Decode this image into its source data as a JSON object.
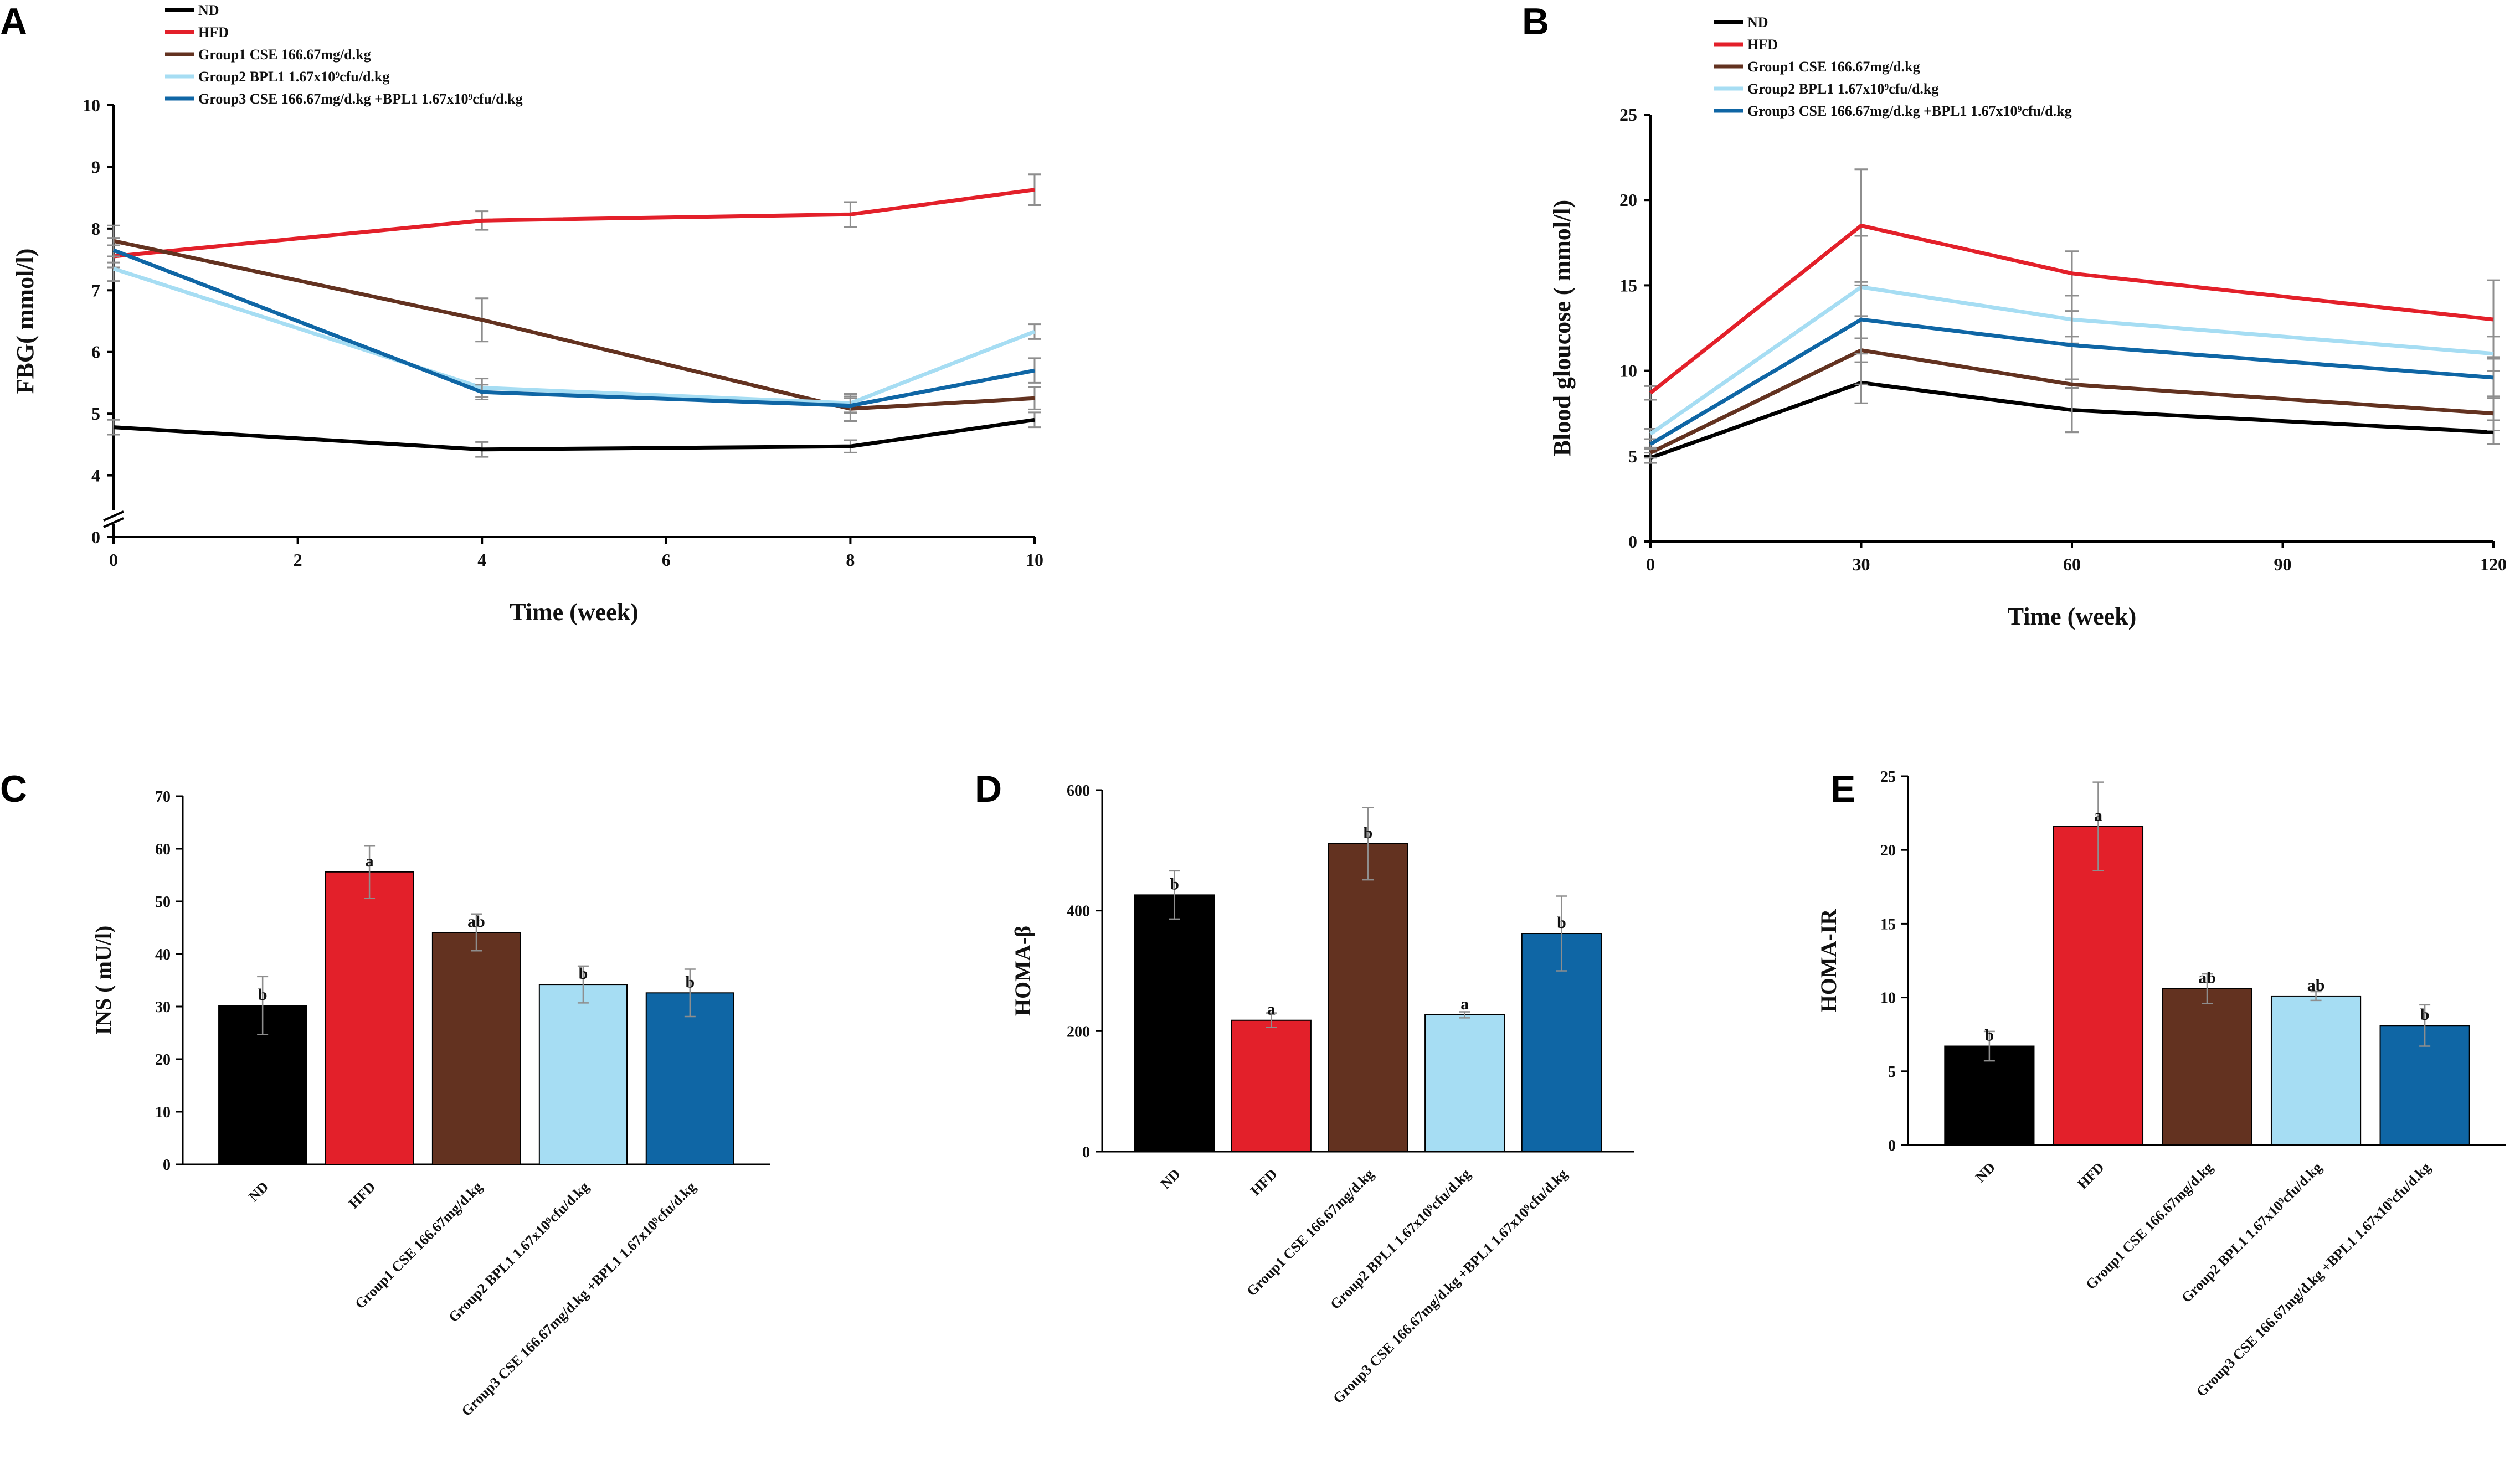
{
  "colors": {
    "ND": "#000000",
    "HFD": "#e3202a",
    "Group1": "#633220",
    "Group2": "#a6ddf3",
    "Group3": "#0f66a5",
    "error": "#8e8e8e"
  },
  "chart_data": [
    {
      "id": "A",
      "type": "line",
      "panel": "A",
      "xlabel": "Time (week)",
      "ylabel": "FBG( mmol/l)",
      "xlim": [
        0,
        10
      ],
      "ylim": [
        3,
        10
      ],
      "axis_break": true,
      "x_ticks": [
        "0",
        "2",
        "4",
        "6",
        "8",
        "10"
      ],
      "y_ticks": [
        "0",
        "4",
        "5",
        "6",
        "7",
        "8",
        "9",
        "10"
      ],
      "x": [
        0,
        4,
        8,
        10
      ],
      "legend": "top-left",
      "series": [
        {
          "key": "ND",
          "name": "ND",
          "values": [
            4.78,
            4.42,
            4.47,
            4.9
          ],
          "errors": [
            0.12,
            0.12,
            0.1,
            0.12
          ]
        },
        {
          "key": "HFD",
          "name": "HFD",
          "values": [
            7.55,
            8.13,
            8.23,
            8.63
          ],
          "errors": [
            0.18,
            0.15,
            0.2,
            0.25
          ]
        },
        {
          "key": "Group1",
          "name": "Group1 CSE 166.67mg/d.kg",
          "values": [
            7.8,
            6.52,
            5.08,
            5.25
          ],
          "errors": [
            0.25,
            0.35,
            0.2,
            0.18
          ]
        },
        {
          "key": "Group2",
          "name": "Group2 BPL1 1.67x10⁹cfu/d.kg",
          "values": [
            7.35,
            5.42,
            5.17,
            6.33
          ],
          "errors": [
            0.2,
            0.15,
            0.15,
            0.12
          ]
        },
        {
          "key": "Group3",
          "name": "Group3 CSE 166.67mg/d.kg +BPL1 1.67x10⁹cfu/d.kg",
          "values": [
            7.65,
            5.35,
            5.13,
            5.7
          ],
          "errors": [
            0.2,
            0.12,
            0.12,
            0.2
          ]
        }
      ]
    },
    {
      "id": "B",
      "type": "line",
      "panel": "B",
      "xlabel": "Time (week)",
      "ylabel": "Blood gloucose ( mmol/l)",
      "xlim": [
        0,
        120
      ],
      "ylim": [
        0,
        25
      ],
      "x_ticks": [
        "0",
        "30",
        "60",
        "90",
        "120"
      ],
      "y_ticks": [
        "0",
        "5",
        "10",
        "15",
        "20",
        "25"
      ],
      "x": [
        0,
        30,
        60,
        120
      ],
      "legend": "top-left",
      "series": [
        {
          "key": "ND",
          "name": "ND",
          "values": [
            4.9,
            9.3,
            7.7,
            6.4
          ],
          "errors": [
            0.3,
            1.2,
            1.3,
            0.7
          ]
        },
        {
          "key": "HFD",
          "name": "HFD",
          "values": [
            8.7,
            18.5,
            15.7,
            13.0
          ],
          "errors": [
            0.4,
            3.3,
            1.3,
            2.3
          ]
        },
        {
          "key": "Group1",
          "name": "Group1 CSE 166.67mg/d.kg",
          "values": [
            5.2,
            11.2,
            9.2,
            7.5
          ],
          "errors": [
            0.3,
            2.0,
            2.8,
            1.0
          ]
        },
        {
          "key": "Group2",
          "name": "Group2 BPL1 1.67x10⁹cfu/d.kg",
          "values": [
            6.3,
            14.9,
            13.0,
            11.0
          ],
          "errors": [
            0.3,
            3.0,
            1.4,
            1.0
          ]
        },
        {
          "key": "Group3",
          "name": "Group3 CSE 166.67mg/d.kg +BPL1 1.67x10⁹cfu/d.kg",
          "values": [
            5.7,
            13.0,
            11.5,
            9.6
          ],
          "errors": [
            0.3,
            2.0,
            2.0,
            1.2
          ]
        }
      ]
    },
    {
      "id": "C",
      "type": "bar",
      "panel": "C",
      "ylabel": "INS ( mU/l)",
      "ylim": [
        0,
        70
      ],
      "y_ticks": [
        "0",
        "10",
        "20",
        "30",
        "40",
        "50",
        "60",
        "70"
      ],
      "categories": [
        "ND",
        "HFD",
        "Group1 CSE 166.67mg/d.kg",
        "Group2 BPL1 1.67x10⁹cfu/d.kg",
        "Group3 CSE 166.67mg/d.kg +BPL1 1.67x10⁹cfu/d.kg"
      ],
      "keys": [
        "ND",
        "HFD",
        "Group1",
        "Group2",
        "Group3"
      ],
      "values": [
        30.2,
        55.6,
        44.1,
        34.2,
        32.6
      ],
      "errors": [
        5.5,
        5.0,
        3.5,
        3.5,
        4.5
      ],
      "letters": [
        "b",
        "a",
        "ab",
        "b",
        "b"
      ]
    },
    {
      "id": "D",
      "type": "bar",
      "panel": "D",
      "ylabel": "HOMA-β",
      "ylim": [
        0,
        600
      ],
      "y_ticks": [
        "0",
        "200",
        "400",
        "600"
      ],
      "categories": [
        "ND",
        "HFD",
        "Group1 CSE 166.67mg/d.kg",
        "Group2 BPL1 1.67x10⁹cfu/d.kg",
        "Group3 CSE 166.67mg/d.kg +BPL1 1.67x10⁹cfu/d.kg"
      ],
      "keys": [
        "ND",
        "HFD",
        "Group1",
        "Group2",
        "Group3"
      ],
      "values": [
        426,
        218,
        511,
        227,
        362
      ],
      "errors": [
        40,
        12,
        60,
        5,
        62
      ],
      "letters": [
        "b",
        "a",
        "b",
        "a",
        "b"
      ]
    },
    {
      "id": "E",
      "type": "bar",
      "panel": "E",
      "ylabel": "HOMA-IR",
      "ylim": [
        0,
        25
      ],
      "y_ticks": [
        "0",
        "5",
        "10",
        "15",
        "20",
        "25"
      ],
      "categories": [
        "ND",
        "HFD",
        "Group1 CSE 166.67mg/d.kg",
        "Group2 BPL1 1.67x10⁹cfu/d.kg",
        "Group3 CSE 166.67mg/d.kg +BPL1 1.67x10⁹cfu/d.kg"
      ],
      "keys": [
        "ND",
        "HFD",
        "Group1",
        "Group2",
        "Group3"
      ],
      "values": [
        6.7,
        21.6,
        10.6,
        10.1,
        8.1
      ],
      "errors": [
        1.0,
        3.0,
        1.0,
        0.3,
        1.4
      ],
      "letters": [
        "b",
        "a",
        "ab",
        "ab",
        "b"
      ]
    }
  ]
}
